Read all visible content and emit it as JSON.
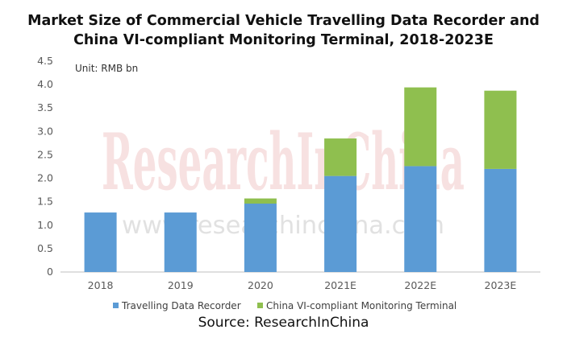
{
  "title_line1": "Market Size of Commercial Vehicle Travelling Data Recorder and",
  "title_line2": "China VI-compliant Monitoring Terminal, 2018-2023E",
  "source": "Source: ResearchInChina",
  "watermark": {
    "logo_text": "ResearchInChina",
    "url_text": "www.researchinchina.com"
  },
  "colors": {
    "series1": "#5b9bd5",
    "series2": "#8fbf4f",
    "watermark": "#f0c8c8",
    "axis_text": "#595959"
  },
  "chart_data": {
    "type": "bar",
    "stacked": true,
    "unit_label": "Unit: RMB bn",
    "categories": [
      "2018",
      "2019",
      "2020",
      "2021E",
      "2022E",
      "2023E"
    ],
    "series": [
      {
        "name": "Travelling Data Recorder",
        "values": [
          1.27,
          1.27,
          1.46,
          2.05,
          2.26,
          2.2
        ]
      },
      {
        "name": "China VI-compliant Monitoring Terminal",
        "values": [
          0,
          0,
          0.11,
          0.8,
          1.68,
          1.67
        ]
      }
    ],
    "ylim": [
      0,
      4.5
    ],
    "yticks": [
      "0",
      "0.5",
      "1.0",
      "1.5",
      "2.0",
      "2.5",
      "3.0",
      "3.5",
      "4.0",
      "4.5"
    ],
    "grid": false,
    "legend_position": "bottom"
  }
}
